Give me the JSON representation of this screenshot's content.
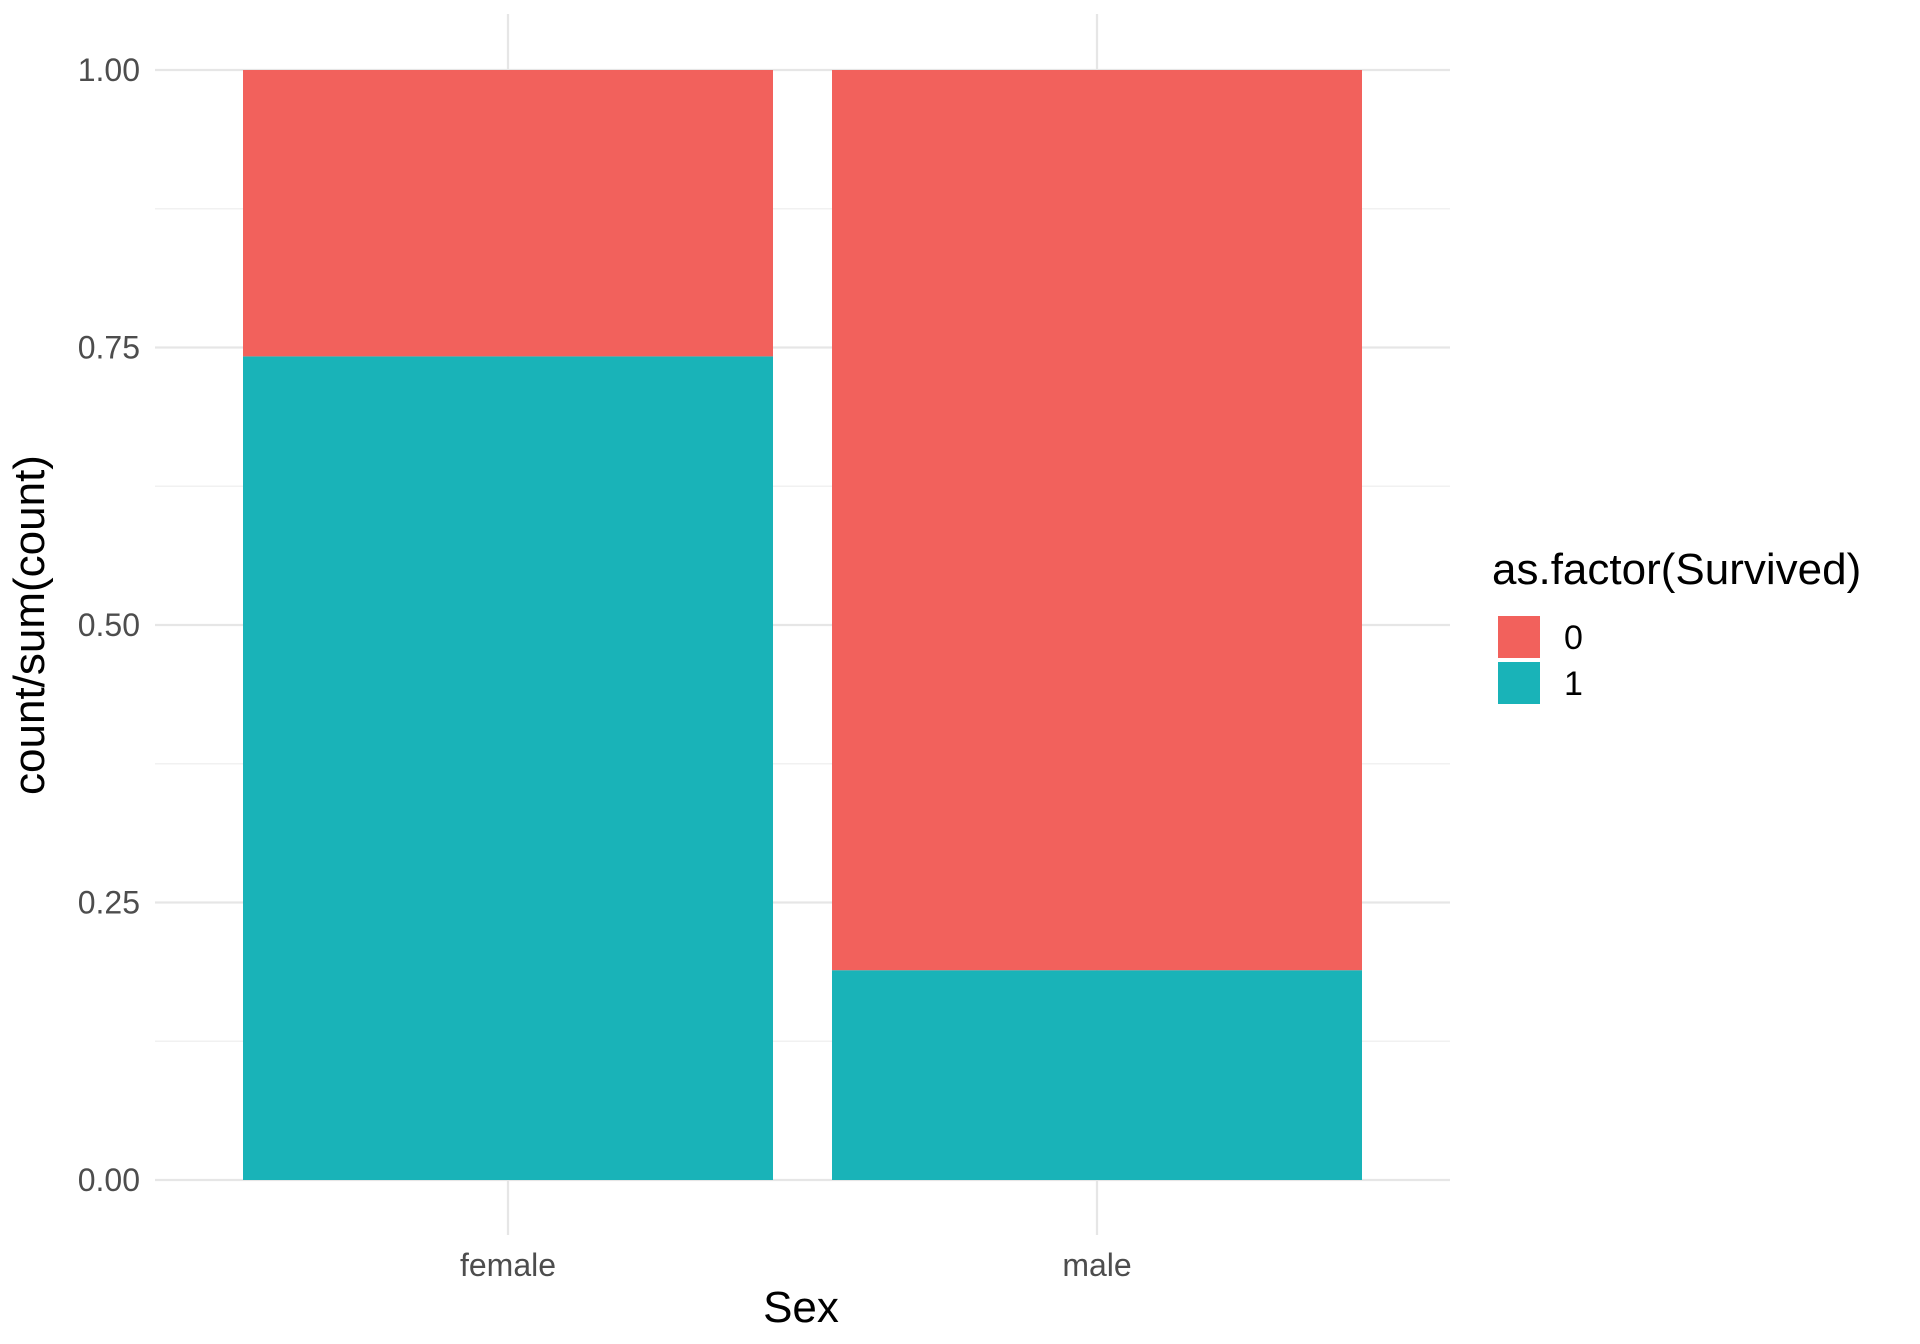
{
  "chart_data": {
    "type": "bar",
    "stacked": true,
    "title": "",
    "xlabel": "Sex",
    "ylabel": "count/sum(count)",
    "categories": [
      "female",
      "male"
    ],
    "series": [
      {
        "name": "0",
        "values": [
          0.258,
          0.811
        ],
        "color": "#F2615C"
      },
      {
        "name": "1",
        "values": [
          0.742,
          0.189
        ],
        "color": "#19B3B8"
      }
    ],
    "ylim": [
      0,
      1
    ],
    "yticks": [
      0.0,
      0.25,
      0.5,
      0.75,
      1.0
    ],
    "ytick_labels": [
      "0.00",
      "0.25",
      "0.50",
      "0.75",
      "1.00"
    ],
    "grid": true,
    "legend": {
      "title": "as.factor(Survived)",
      "position": "right",
      "entries": [
        "0",
        "1"
      ]
    }
  }
}
